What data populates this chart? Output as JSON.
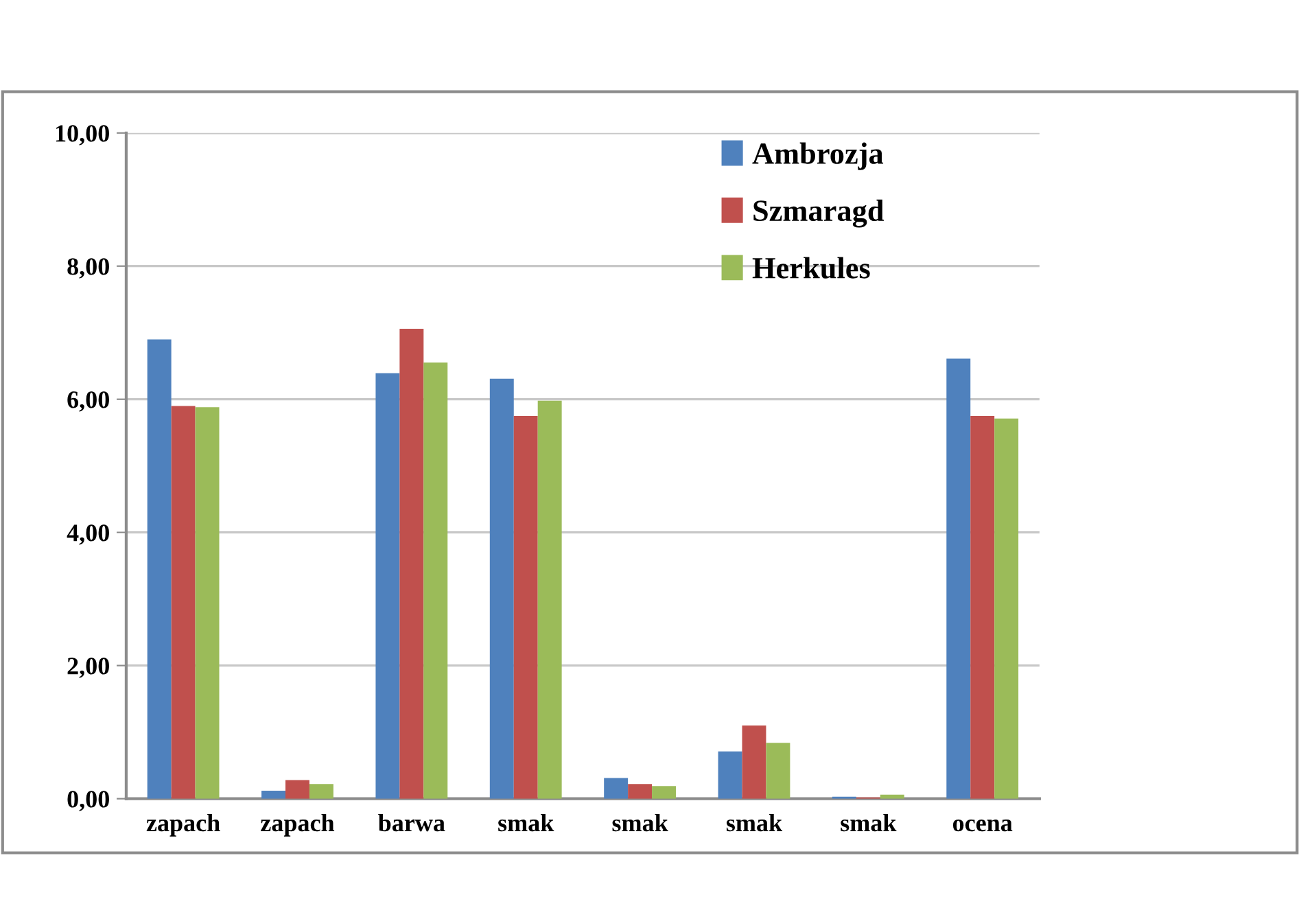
{
  "chart_data": {
    "type": "bar",
    "categories": [
      "zapach",
      "zapach",
      "barwa",
      "smak",
      "smak",
      "smak",
      "smak",
      "ocena"
    ],
    "series": [
      {
        "name": "Ambrozja",
        "color": "#4f81bd",
        "values": [
          6.9,
          0.12,
          6.39,
          6.31,
          0.31,
          0.71,
          0.03,
          6.61
        ]
      },
      {
        "name": "Szmaragd",
        "color": "#c0504d",
        "values": [
          5.9,
          0.28,
          7.06,
          5.75,
          0.22,
          1.1,
          0.02,
          5.75
        ]
      },
      {
        "name": "Herkules",
        "color": "#9bbb59",
        "values": [
          5.88,
          0.22,
          6.55,
          5.98,
          0.19,
          0.84,
          0.06,
          5.71
        ]
      }
    ],
    "ylim": [
      0,
      10
    ],
    "yticks": [
      {
        "value": 0,
        "label": "0,00"
      },
      {
        "value": 2,
        "label": "2,00"
      },
      {
        "value": 4,
        "label": "4,00"
      },
      {
        "value": 6,
        "label": "6,00"
      },
      {
        "value": 8,
        "label": "8,00"
      },
      {
        "value": 10,
        "label": "10,00"
      }
    ],
    "grid": "y",
    "legend": "top right"
  }
}
